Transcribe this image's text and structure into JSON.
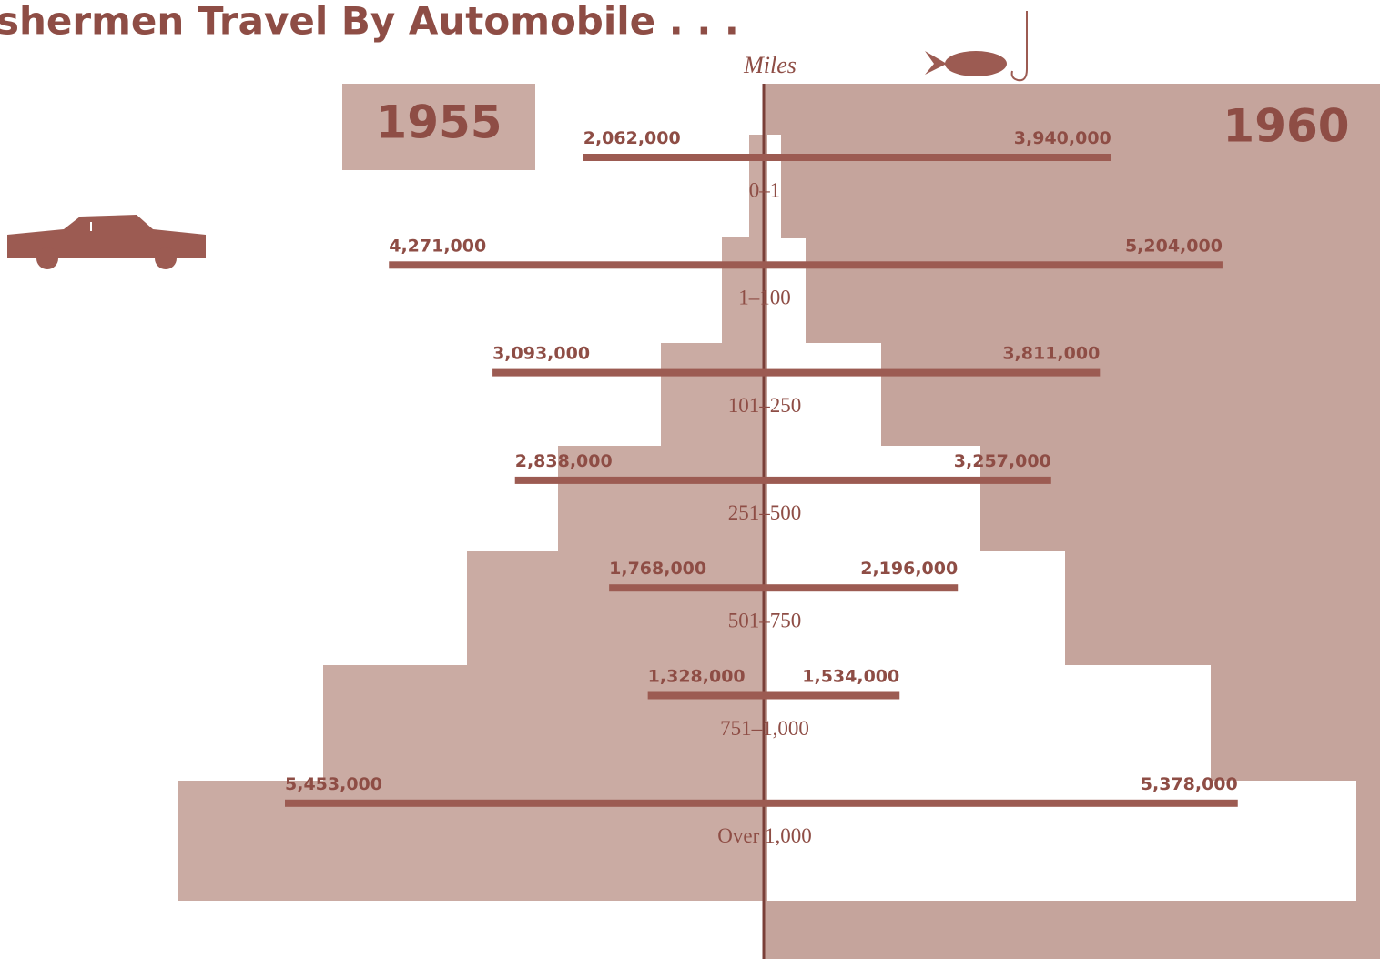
{
  "chart_data": {
    "type": "butterfly-bar",
    "title": "shermen Travel By Automobile . . .",
    "axis_label": "Miles",
    "categories": [
      "0–1",
      "1–100",
      "101–250",
      "251–500",
      "501–750",
      "751–1,000",
      "Over 1,000"
    ],
    "series": [
      {
        "name": "1955",
        "color": "#9c5b52",
        "values": [
          2062000,
          4271000,
          3093000,
          2838000,
          1768000,
          1328000,
          5453000
        ],
        "value_labels": [
          "2,062,000",
          "4,271,000",
          "3,093,000",
          "2,838,000",
          "1,768,000",
          "1,328,000",
          "5,453,000"
        ]
      },
      {
        "name": "1960",
        "color": "#9c5b52",
        "values": [
          3940000,
          5204000,
          3811000,
          3257000,
          2196000,
          1534000,
          5378000
        ],
        "value_labels": [
          "3,940,000",
          "5,204,000",
          "3,811,000",
          "3,257,000",
          "2,196,000",
          "1,534,000",
          "5,378,000"
        ]
      }
    ]
  }
}
